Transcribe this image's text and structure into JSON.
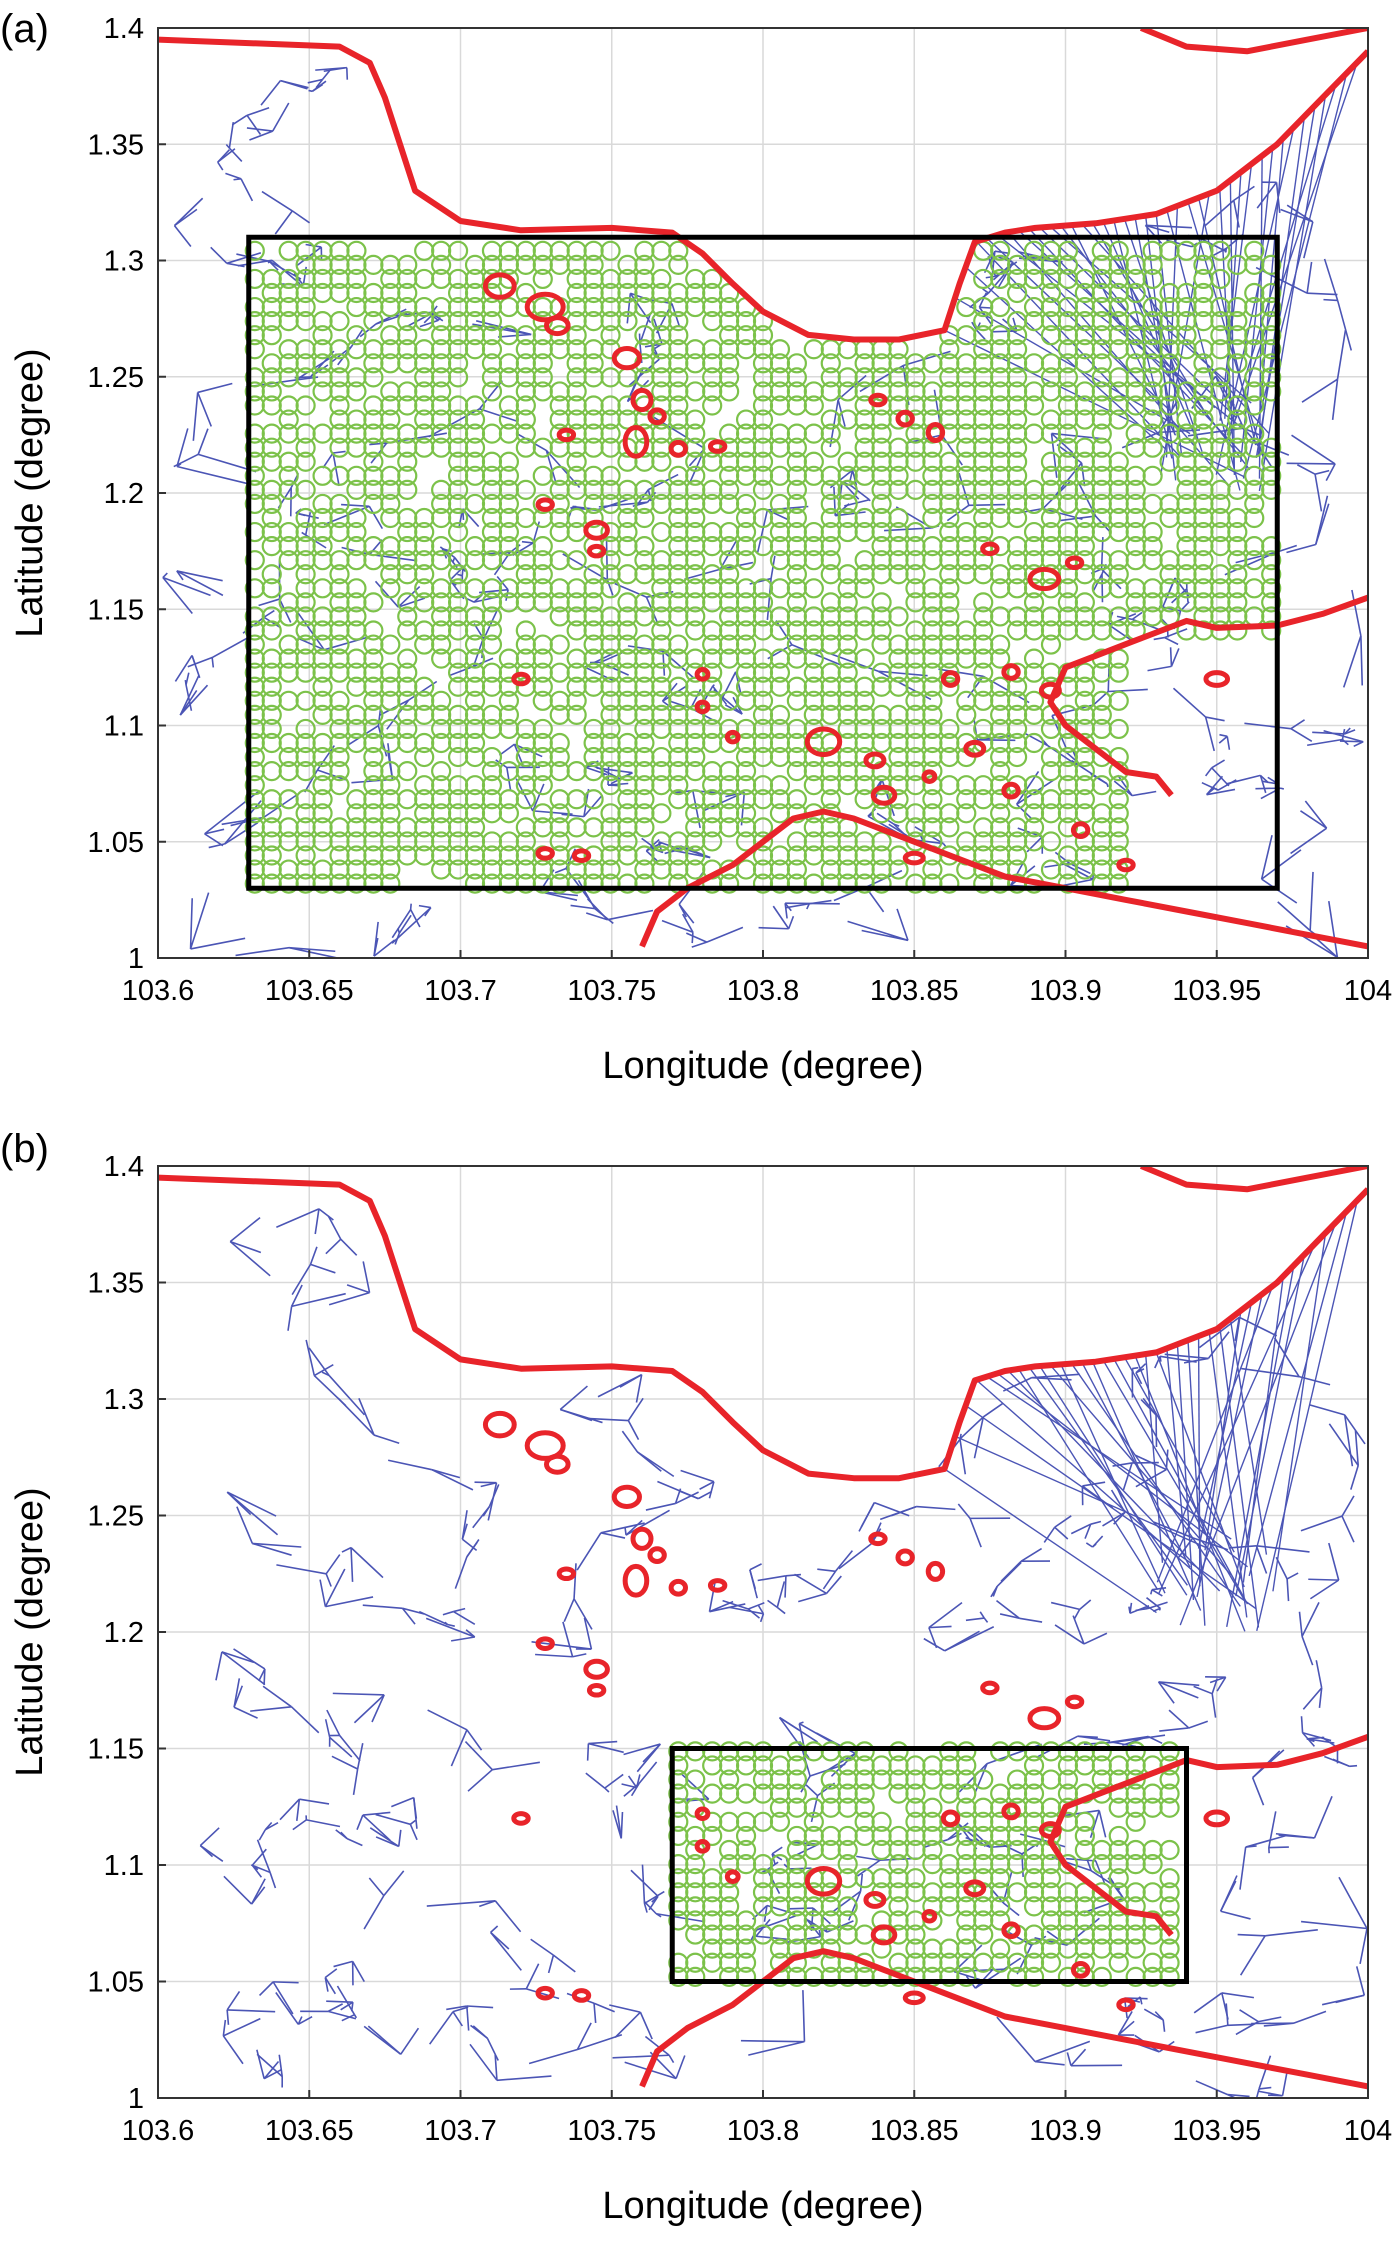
{
  "panels": [
    {
      "label": "(a)",
      "xlabel": "Longitude (degree)",
      "ylabel": "Latitude (degree)",
      "xlim": [
        103.6,
        104.0
      ],
      "ylim": [
        1.0,
        1.4
      ],
      "xticks": [
        "103.6",
        "103.65",
        "103.7",
        "103.75",
        "103.8",
        "103.85",
        "103.9",
        "103.95",
        "104"
      ],
      "yticks": [
        "1",
        "1.05",
        "1.1",
        "1.15",
        "1.2",
        "1.25",
        "1.3",
        "1.35",
        "1.4"
      ],
      "box": {
        "lon": [
          103.63,
          103.97
        ],
        "lat": [
          1.03,
          1.31
        ]
      },
      "grid": true
    },
    {
      "label": "(b)",
      "xlabel": "Longitude (degree)",
      "ylabel": "Latitude (degree)",
      "xlim": [
        103.6,
        104.0
      ],
      "ylim": [
        1.0,
        1.4
      ],
      "xticks": [
        "103.6",
        "103.65",
        "103.7",
        "103.75",
        "103.8",
        "103.85",
        "103.9",
        "103.95",
        "104"
      ],
      "yticks": [
        "1",
        "1.05",
        "1.1",
        "1.15",
        "1.2",
        "1.25",
        "1.3",
        "1.35",
        "1.4"
      ],
      "box": {
        "lon": [
          103.77,
          103.94
        ],
        "lat": [
          1.05,
          1.15
        ]
      },
      "grid": true
    }
  ],
  "colors": {
    "coastline": "#e8242a",
    "mesh": "#4b55b5",
    "nodes": "#7cc24a",
    "box": "#000000",
    "grid": "#d9d9d9"
  },
  "coastline": {
    "north": [
      [
        103.6,
        1.395
      ],
      [
        103.66,
        1.392
      ],
      [
        103.67,
        1.385
      ],
      [
        103.675,
        1.37
      ],
      [
        103.68,
        1.35
      ],
      [
        103.685,
        1.33
      ],
      [
        103.7,
        1.317
      ],
      [
        103.72,
        1.313
      ],
      [
        103.75,
        1.314
      ],
      [
        103.77,
        1.312
      ],
      [
        103.78,
        1.303
      ],
      [
        103.79,
        1.29
      ],
      [
        103.8,
        1.278
      ],
      [
        103.815,
        1.268
      ],
      [
        103.83,
        1.266
      ],
      [
        103.845,
        1.266
      ],
      [
        103.86,
        1.27
      ],
      [
        103.865,
        1.29
      ],
      [
        103.87,
        1.308
      ],
      [
        103.88,
        1.312
      ],
      [
        103.89,
        1.314
      ],
      [
        103.91,
        1.316
      ],
      [
        103.93,
        1.32
      ],
      [
        103.95,
        1.33
      ],
      [
        103.97,
        1.35
      ],
      [
        103.985,
        1.37
      ],
      [
        104.0,
        1.39
      ]
    ],
    "topright": [
      [
        103.925,
        1.4
      ],
      [
        103.94,
        1.392
      ],
      [
        103.96,
        1.39
      ],
      [
        103.98,
        1.395
      ],
      [
        104.0,
        1.4
      ]
    ],
    "east": [
      [
        104.0,
        1.155
      ],
      [
        103.985,
        1.148
      ],
      [
        103.97,
        1.143
      ],
      [
        103.95,
        1.142
      ],
      [
        103.94,
        1.145
      ],
      [
        103.93,
        1.14
      ],
      [
        103.92,
        1.135
      ],
      [
        103.91,
        1.13
      ],
      [
        103.9,
        1.125
      ],
      [
        103.895,
        1.11
      ],
      [
        103.9,
        1.1
      ],
      [
        103.91,
        1.09
      ],
      [
        103.92,
        1.08
      ],
      [
        103.93,
        1.078
      ],
      [
        103.935,
        1.07
      ]
    ],
    "south": [
      [
        103.76,
        1.005
      ],
      [
        103.765,
        1.02
      ],
      [
        103.775,
        1.03
      ],
      [
        103.79,
        1.04
      ],
      [
        103.8,
        1.05
      ],
      [
        103.81,
        1.06
      ],
      [
        103.82,
        1.063
      ],
      [
        103.83,
        1.06
      ],
      [
        103.84,
        1.055
      ],
      [
        103.85,
        1.05
      ],
      [
        103.86,
        1.045
      ],
      [
        103.87,
        1.04
      ],
      [
        103.88,
        1.035
      ],
      [
        103.9,
        1.03
      ],
      [
        103.92,
        1.025
      ],
      [
        103.94,
        1.02
      ],
      [
        103.96,
        1.015
      ],
      [
        103.98,
        1.01
      ],
      [
        104.0,
        1.005
      ]
    ],
    "islands": [
      [
        103.713,
        1.289,
        8,
        7
      ],
      [
        103.728,
        1.28,
        10,
        8
      ],
      [
        103.732,
        1.272,
        6,
        5
      ],
      [
        103.755,
        1.258,
        7,
        6
      ],
      [
        103.76,
        1.24,
        5,
        6
      ],
      [
        103.765,
        1.233,
        4,
        4
      ],
      [
        103.758,
        1.222,
        6,
        9
      ],
      [
        103.772,
        1.219,
        4,
        4
      ],
      [
        103.785,
        1.22,
        4,
        3
      ],
      [
        103.735,
        1.225,
        4,
        3
      ],
      [
        103.728,
        1.195,
        4,
        3
      ],
      [
        103.745,
        1.184,
        6,
        5
      ],
      [
        103.745,
        1.175,
        4,
        3
      ],
      [
        103.72,
        1.12,
        4,
        3
      ],
      [
        103.728,
        1.045,
        4,
        3
      ],
      [
        103.74,
        1.044,
        4,
        3
      ],
      [
        103.78,
        1.122,
        3,
        3
      ],
      [
        103.78,
        1.108,
        3,
        3
      ],
      [
        103.82,
        1.093,
        9,
        8
      ],
      [
        103.79,
        1.095,
        3,
        3
      ],
      [
        103.847,
        1.232,
        4,
        4
      ],
      [
        103.857,
        1.226,
        4,
        5
      ],
      [
        103.838,
        1.24,
        4,
        3
      ],
      [
        103.893,
        1.163,
        8,
        6
      ],
      [
        103.875,
        1.176,
        4,
        3
      ],
      [
        103.903,
        1.17,
        4,
        3
      ],
      [
        103.862,
        1.12,
        4,
        4
      ],
      [
        103.882,
        1.123,
        4,
        4
      ],
      [
        103.895,
        1.115,
        5,
        4
      ],
      [
        103.837,
        1.085,
        5,
        4
      ],
      [
        103.87,
        1.09,
        5,
        4
      ],
      [
        103.882,
        1.072,
        4,
        4
      ],
      [
        103.855,
        1.078,
        3,
        3
      ],
      [
        103.84,
        1.07,
        6,
        5
      ],
      [
        103.95,
        1.12,
        6,
        4
      ],
      [
        103.85,
        1.043,
        5,
        3
      ],
      [
        103.905,
        1.055,
        4,
        4
      ],
      [
        103.92,
        1.04,
        4,
        3
      ]
    ]
  }
}
